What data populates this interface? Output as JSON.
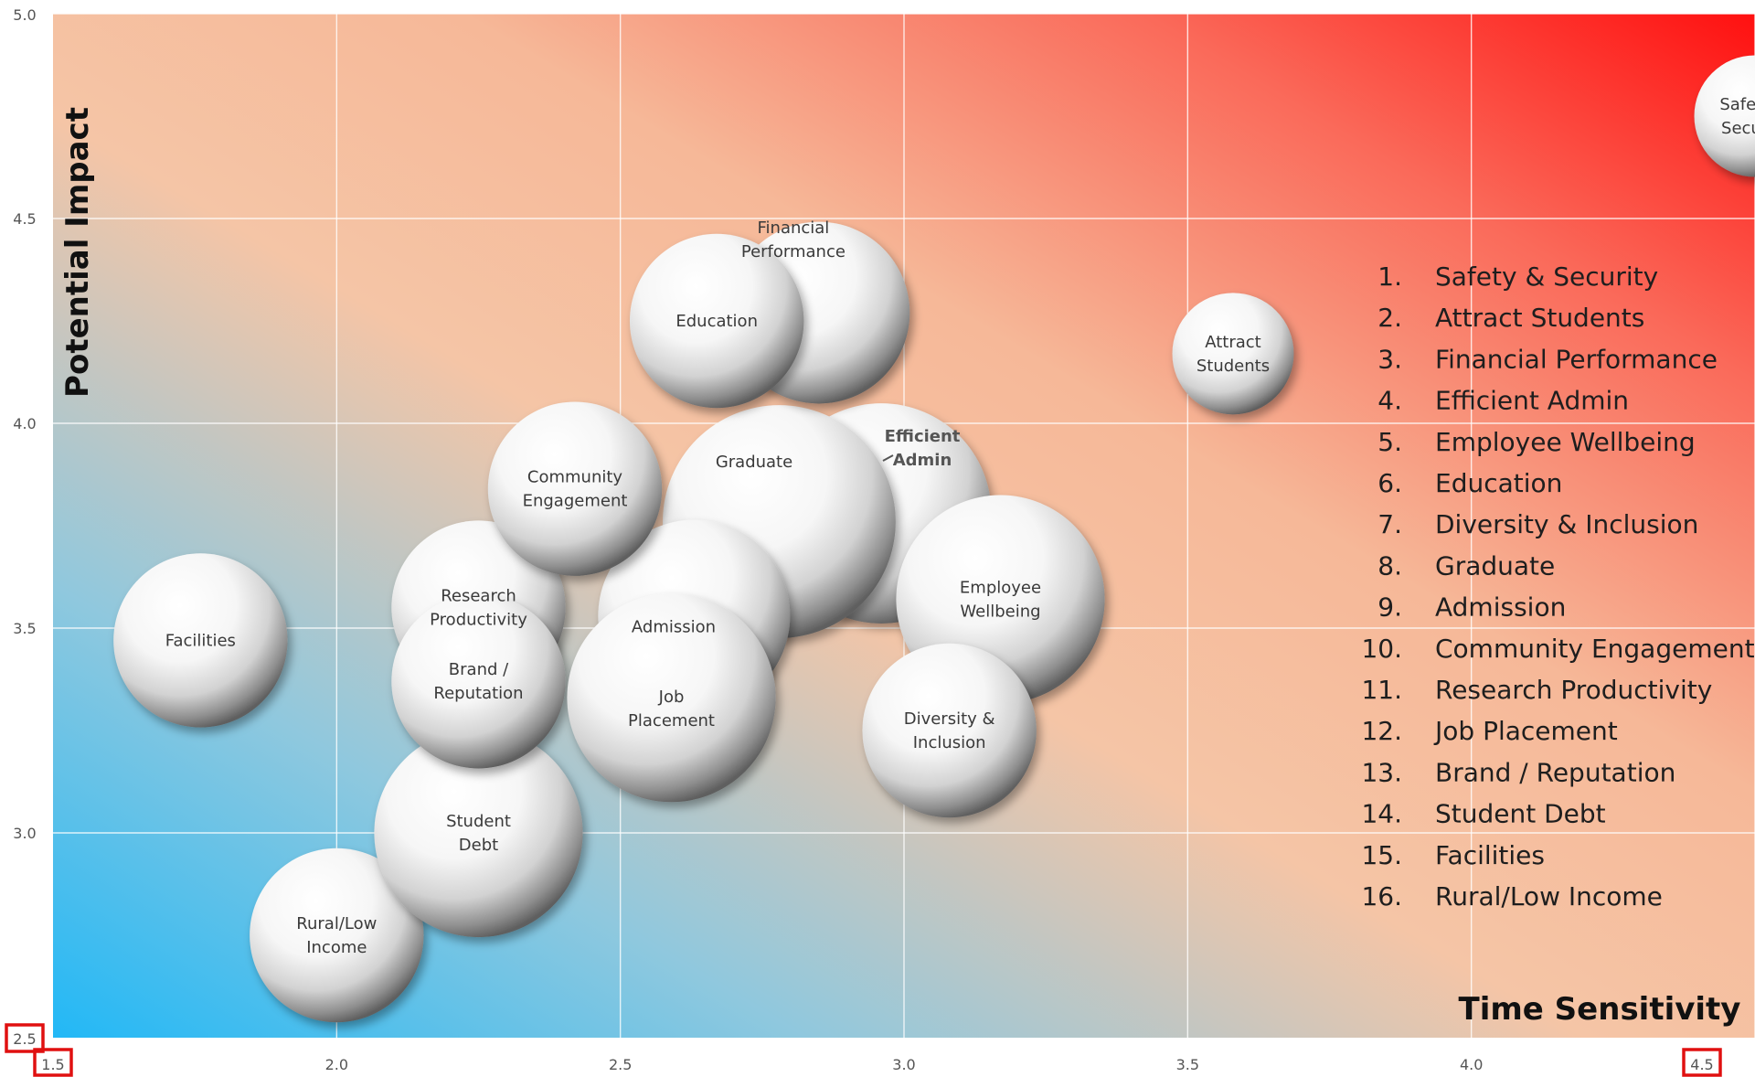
{
  "chart_data": {
    "type": "scatter",
    "title": "",
    "xlabel": "Time Sensitivity",
    "ylabel": "Potential Impact",
    "xlim": [
      1.5,
      4.5
    ],
    "ylim": [
      2.5,
      5.0
    ],
    "x_ticks": [
      "1.5",
      "2.0",
      "2.5",
      "3.0",
      "3.5",
      "4.0",
      "4.5"
    ],
    "y_ticks": [
      "2.5",
      "3.0",
      "3.5",
      "4.0",
      "4.5",
      "5.0"
    ],
    "grid": true,
    "highlighted_ticks": [
      "2.5",
      "1.5",
      "4.5"
    ],
    "background_gradient": {
      "low_left": "#2ab7f0",
      "middle": "#f5c4a4",
      "high_right": "#ff1a1a"
    },
    "bubbles": [
      {
        "label": "Safety & Security",
        "x": 4.5,
        "y": 4.75,
        "size": 0.95
      },
      {
        "label": "Attract Students",
        "x": 3.58,
        "y": 4.17,
        "size": 0.95
      },
      {
        "label": "Financial Performance",
        "x": 2.85,
        "y": 4.27,
        "size": 1.42
      },
      {
        "label": "Efficient Admin",
        "x": 2.96,
        "y": 3.78,
        "size": 1.72
      },
      {
        "label": "Employee Wellbeing",
        "x": 3.17,
        "y": 3.57,
        "size": 1.63
      },
      {
        "label": "Education",
        "x": 2.67,
        "y": 4.25,
        "size": 1.36
      },
      {
        "label": "Diversity & Inclusion",
        "x": 3.08,
        "y": 3.25,
        "size": 1.36
      },
      {
        "label": "Graduate",
        "x": 2.78,
        "y": 3.76,
        "size": 1.82
      },
      {
        "label": "Admission",
        "x": 2.63,
        "y": 3.53,
        "size": 1.5
      },
      {
        "label": "Community Engagement",
        "x": 2.42,
        "y": 3.84,
        "size": 1.36
      },
      {
        "label": "Research Productivity",
        "x": 2.25,
        "y": 3.55,
        "size": 1.36
      },
      {
        "label": "Job Placement",
        "x": 2.59,
        "y": 3.33,
        "size": 1.63
      },
      {
        "label": "Brand / Reputation",
        "x": 2.25,
        "y": 3.37,
        "size": 1.36
      },
      {
        "label": "Student Debt",
        "x": 2.25,
        "y": 3.0,
        "size": 1.63
      },
      {
        "label": "Facilities",
        "x": 1.76,
        "y": 3.47,
        "size": 1.36
      },
      {
        "label": "Rural/Low Income",
        "x": 2.0,
        "y": 2.75,
        "size": 1.36
      }
    ],
    "bubble_labels": [
      {
        "lines": [
          "Safety &",
          "Security"
        ]
      },
      {
        "lines": [
          "Attract",
          "Students"
        ]
      },
      {
        "lines": [
          "Financial",
          "Performance"
        ]
      },
      {
        "lines": [
          "Efficient",
          "Admin"
        ]
      },
      {
        "lines": [
          "Employee",
          "Wellbeing"
        ]
      },
      {
        "lines": [
          "Education"
        ]
      },
      {
        "lines": [
          "Diversity &",
          "Inclusion"
        ]
      },
      {
        "lines": [
          "Graduate"
        ]
      },
      {
        "lines": [
          "Admission"
        ]
      },
      {
        "lines": [
          "Community",
          "Engagement"
        ]
      },
      {
        "lines": [
          "Research",
          "Productivity"
        ]
      },
      {
        "lines": [
          "Job",
          "Placement"
        ]
      },
      {
        "lines": [
          "Brand /",
          "Reputation"
        ]
      },
      {
        "lines": [
          "Student",
          "Debt"
        ]
      },
      {
        "lines": [
          "Facilities"
        ]
      },
      {
        "lines": [
          "Rural/Low",
          "Income"
        ]
      }
    ],
    "legend": [
      {
        "num": "1.",
        "text": "Safety & Security"
      },
      {
        "num": "2.",
        "text": "Attract Students"
      },
      {
        "num": "3.",
        "text": "Financial Performance"
      },
      {
        "num": "4.",
        "text": "Efficient Admin"
      },
      {
        "num": "5.",
        "text": "Employee Wellbeing"
      },
      {
        "num": "6.",
        "text": "Education"
      },
      {
        "num": "7.",
        "text": "Diversity & Inclusion"
      },
      {
        "num": "8.",
        "text": "Graduate"
      },
      {
        "num": "9.",
        "text": "Admission"
      },
      {
        "num": "10.",
        "text": "Community Engagement"
      },
      {
        "num": "11.",
        "text": "Research Productivity"
      },
      {
        "num": "12.",
        "text": "Job Placement"
      },
      {
        "num": "13.",
        "text": "Brand / Reputation"
      },
      {
        "num": "14.",
        "text": "Student Debt"
      },
      {
        "num": "15.",
        "text": "Facilities"
      },
      {
        "num": "16.",
        "text": "Rural/Low Income"
      }
    ],
    "legend_position": "right"
  }
}
